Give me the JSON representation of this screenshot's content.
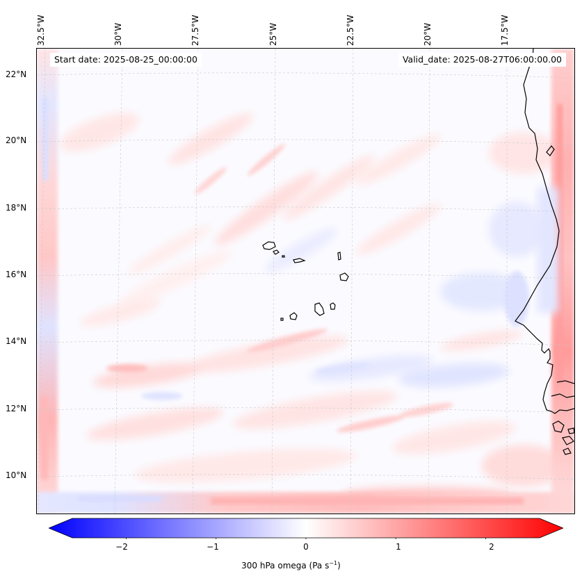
{
  "header": {
    "start_date": "Start date: 2025-08-25_00:00:00",
    "valid_date": "Valid_date: 2025-08-27T06:00:00.00"
  },
  "axes": {
    "longitude_labels": [
      "32.5°W",
      "30°W",
      "27.5°W",
      "25°W",
      "22.5°W",
      "20°W",
      "17.5°W"
    ],
    "latitude_labels": [
      "22°N",
      "20°N",
      "18°N",
      "16°N",
      "14°N",
      "12°N",
      "10°N"
    ]
  },
  "colorbar": {
    "ticks": [
      "−2",
      "−1",
      "0",
      "1",
      "2"
    ],
    "label_main": "300 hPa omega (Pa s",
    "label_exp": "−1",
    "label_end": ")",
    "range": [
      -2.6,
      2.6
    ],
    "colors": {
      "negative": "#0000ff",
      "zero": "#ffffff",
      "positive": "#ff0000"
    }
  },
  "map": {
    "variable": "300 hPa omega",
    "coastline_color": "#000000",
    "gridline_color": "#bbbbbb"
  }
}
